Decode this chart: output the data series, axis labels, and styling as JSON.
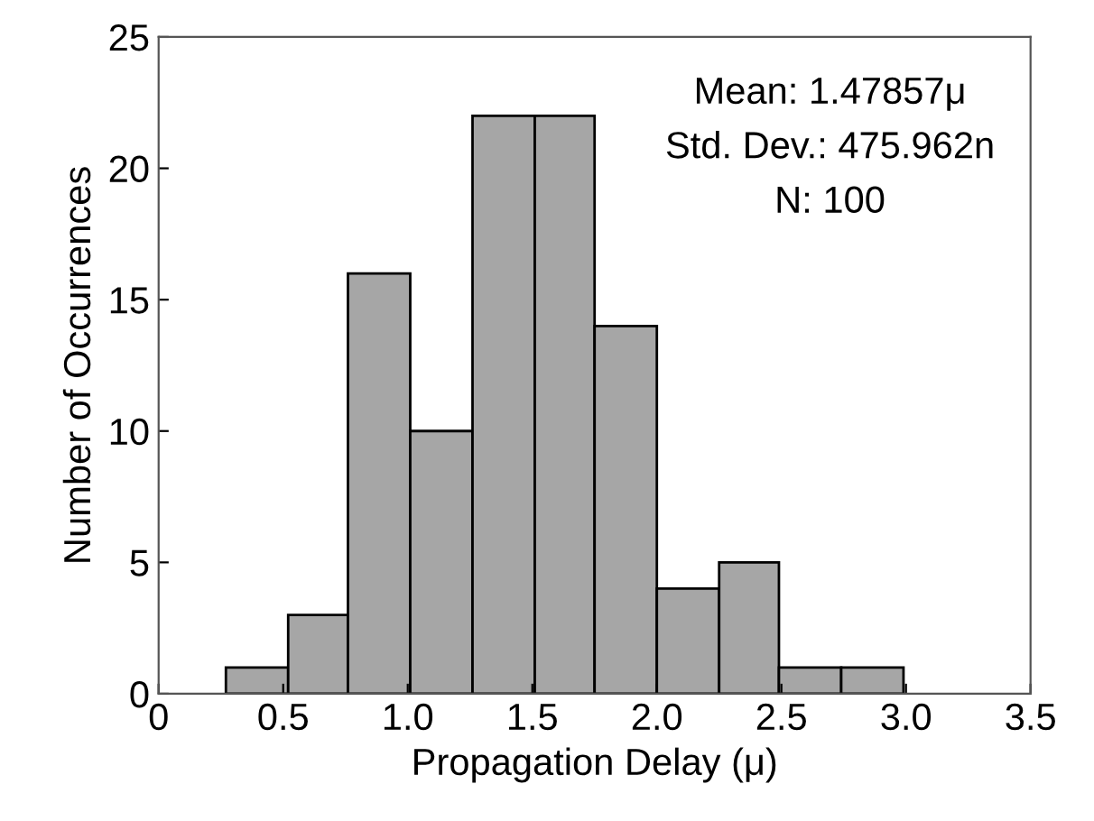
{
  "chart_data": {
    "type": "histogram",
    "xlabel": "Propagation Delay (μ)",
    "ylabel": "Number of Occurrences",
    "bins": [
      0.27,
      0.52,
      0.76,
      1.01,
      1.26,
      1.51,
      1.75,
      2.0,
      2.25,
      2.49,
      2.74,
      2.99
    ],
    "values": [
      1,
      3,
      16,
      10,
      22,
      22,
      14,
      4,
      5,
      1,
      1
    ],
    "color": "#a6a6a6",
    "xlim": [
      0,
      3.5
    ],
    "xticks": [
      0,
      {
        "value": 0.5,
        "label": "0.5"
      },
      {
        "value": 1.0,
        "label": "1.0"
      },
      {
        "value": 1.5,
        "label": "1.5"
      },
      {
        "value": 2.0,
        "label": "2.0"
      },
      {
        "value": 2.5,
        "label": "2.5"
      },
      {
        "value": 3.0,
        "label": "3.0"
      },
      {
        "value": 3.5,
        "label": "3.5"
      }
    ],
    "ylim": [
      0,
      25
    ],
    "yticks": [
      0,
      5,
      10,
      15,
      20,
      25
    ],
    "grid": false,
    "annotations": [
      "Mean: 1.47857μ",
      "Std. Dev.: 475.962n",
      "N: 100"
    ]
  }
}
